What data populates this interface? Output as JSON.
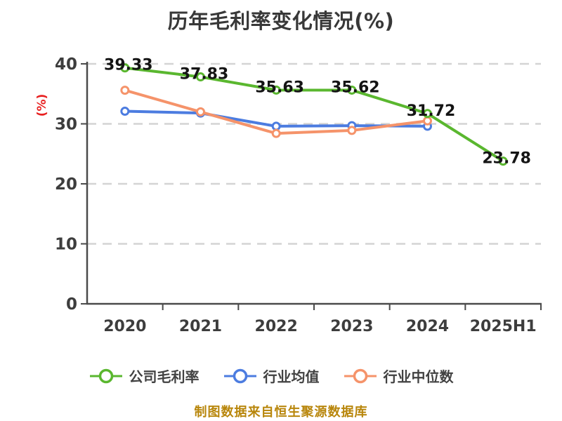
{
  "title": "历年毛利率变化情况(%)",
  "y_axis_label": "(%)",
  "footer": "制图数据来自恒生聚源数据库",
  "colors": {
    "company_green": "#5ab72f",
    "industry_avg_blue": "#4c7ce0",
    "industry_median_orange": "#f5936a",
    "axis": "#4a4a4a",
    "grid": "#d4d4d4",
    "title_text": "#383838",
    "value_label": "#141414",
    "tick_label": "#3d3d3d",
    "ylabel_red": "#e82020",
    "footer_gold": "#b8860b"
  },
  "chart_data": {
    "type": "line",
    "title": "历年毛利率变化情况(%)",
    "xlabel": "",
    "ylabel": "(%)",
    "categories": [
      "2020",
      "2021",
      "2022",
      "2023",
      "2024",
      "2025H1"
    ],
    "series": [
      {
        "name": "公司毛利率",
        "color": "#5ab72f",
        "values": [
          39.33,
          37.83,
          35.63,
          35.62,
          31.72,
          23.78
        ],
        "labels_shown": true
      },
      {
        "name": "行业均值",
        "color": "#4c7ce0",
        "values": [
          32.1,
          31.8,
          29.6,
          29.7,
          29.6
        ],
        "labels_shown": false
      },
      {
        "name": "行业中位数",
        "color": "#f5936a",
        "values": [
          35.6,
          32.0,
          28.4,
          28.9,
          30.5
        ],
        "labels_shown": false
      }
    ],
    "ylim": [
      0,
      40
    ],
    "yticks": [
      0,
      10,
      20,
      30,
      40
    ],
    "grid": "dashed-horizontal",
    "legend_position": "bottom",
    "marker": "hollow-circle"
  }
}
